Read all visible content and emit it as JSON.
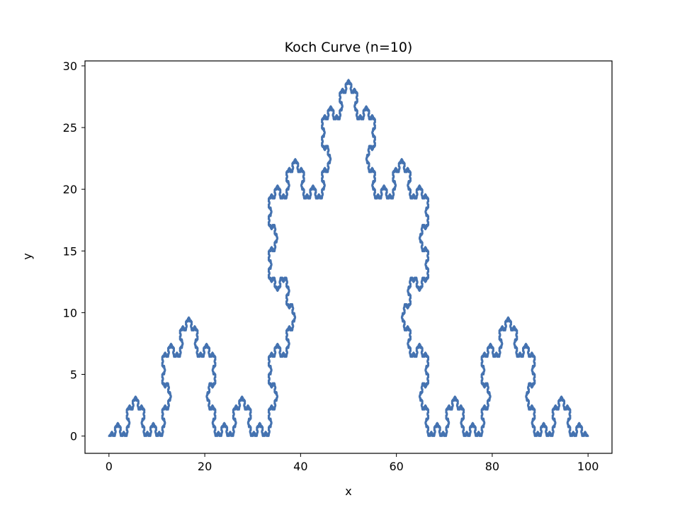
{
  "chart_data": {
    "type": "line",
    "title": "Koch Curve (n=10)",
    "xlabel": "x",
    "ylabel": "y",
    "xlim": [
      -5,
      105
    ],
    "ylim": [
      -1.4,
      30.4
    ],
    "xticks": [
      0,
      20,
      40,
      60,
      80,
      100
    ],
    "yticks": [
      0,
      5,
      10,
      15,
      20,
      25,
      30
    ],
    "grid": false,
    "series": [
      {
        "line_color": "#4472b0",
        "generator": {
          "iterations": 10,
          "start": [
            0,
            0
          ],
          "end": [
            100,
            0
          ],
          "angle_deg": 60
        }
      }
    ]
  }
}
